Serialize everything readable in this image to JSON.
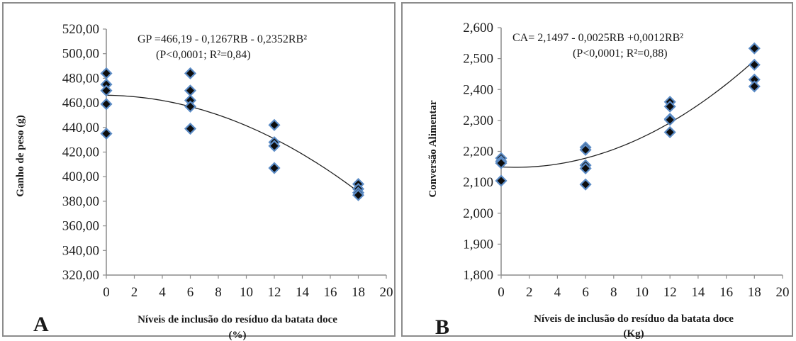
{
  "chart_data": [
    {
      "id": "A",
      "type": "scatter",
      "panel_label": "A",
      "ylabel": "Ganho de peso (g)",
      "xlabel_line1": "Níveis de inclusão do resíduo da batata doce",
      "xlabel_line2": "(%)",
      "equation": "GP =466,19 - 0,1267RB - 0,2352RB²",
      "stats": "(P<0,0001; R²=0,84)",
      "xlim": [
        0,
        20
      ],
      "ylim": [
        320,
        520
      ],
      "xticks": [
        0,
        2,
        4,
        6,
        8,
        10,
        12,
        14,
        16,
        18,
        20
      ],
      "xtick_labels": [
        "0",
        "2",
        "4",
        "6",
        "8",
        "10",
        "12",
        "14",
        "16",
        "18",
        "20"
      ],
      "yticks": [
        320,
        340,
        360,
        380,
        400,
        420,
        440,
        460,
        480,
        500,
        520
      ],
      "ytick_labels": [
        "320,00",
        "340,00",
        "360,00",
        "380,00",
        "400,00",
        "420,00",
        "440,00",
        "460,00",
        "480,00",
        "500,00",
        "520,00"
      ],
      "points": [
        [
          0,
          484
        ],
        [
          0,
          475
        ],
        [
          0,
          470
        ],
        [
          0,
          459
        ],
        [
          0,
          435
        ],
        [
          6,
          484
        ],
        [
          6,
          470
        ],
        [
          6,
          462
        ],
        [
          6,
          457
        ],
        [
          6,
          439
        ],
        [
          12,
          442
        ],
        [
          12,
          428
        ],
        [
          12,
          425
        ],
        [
          12,
          407
        ],
        [
          18,
          394
        ],
        [
          18,
          390
        ],
        [
          18,
          387
        ],
        [
          18,
          385
        ]
      ],
      "trend": {
        "a": 466.19,
        "b": -0.1267,
        "c": -0.2352,
        "x_from": 0,
        "x_to": 18
      },
      "grid": false
    },
    {
      "id": "B",
      "type": "scatter",
      "panel_label": "B",
      "ylabel": "Conversão Alimentar",
      "xlabel_line1": "Níveis de inclusão do resíduo da batata doce",
      "xlabel_line2": "(Kg)",
      "equation": "CA= 2,1497 - 0,0025RB +0,0012RB²",
      "stats": "(P<0,0001; R²=0,88)",
      "xlim": [
        0,
        20
      ],
      "ylim": [
        1.8,
        2.6
      ],
      "xticks": [
        0,
        2,
        4,
        6,
        8,
        10,
        12,
        14,
        16,
        18,
        20
      ],
      "xtick_labels": [
        "0",
        "2",
        "4",
        "6",
        "8",
        "10",
        "12",
        "14",
        "16",
        "18",
        "20"
      ],
      "yticks": [
        1.8,
        1.9,
        2.0,
        2.1,
        2.2,
        2.3,
        2.4,
        2.5,
        2.6
      ],
      "ytick_labels": [
        "1,800",
        "1,900",
        "2,000",
        "2,100",
        "2,200",
        "2,300",
        "2,400",
        "2,500",
        "2,600"
      ],
      "points": [
        [
          0,
          2.178
        ],
        [
          0,
          2.168
        ],
        [
          0,
          2.162
        ],
        [
          0,
          2.105
        ],
        [
          6,
          2.213
        ],
        [
          6,
          2.205
        ],
        [
          6,
          2.155
        ],
        [
          6,
          2.145
        ],
        [
          6,
          2.093
        ],
        [
          12,
          2.36
        ],
        [
          12,
          2.345
        ],
        [
          12,
          2.305
        ],
        [
          12,
          2.302
        ],
        [
          12,
          2.262
        ],
        [
          18,
          2.533
        ],
        [
          18,
          2.48
        ],
        [
          18,
          2.432
        ],
        [
          18,
          2.41
        ]
      ],
      "trend": {
        "a": 2.1497,
        "b": -0.0025,
        "c": 0.0012,
        "x_from": 0,
        "x_to": 18
      },
      "grid": false
    }
  ],
  "colors": {
    "marker_fill": "#0d0d0d",
    "marker_outline": "#5b8bc5",
    "trend_line": "#222222",
    "axis": "#8c8c8c",
    "border": "#8c8c8c"
  }
}
